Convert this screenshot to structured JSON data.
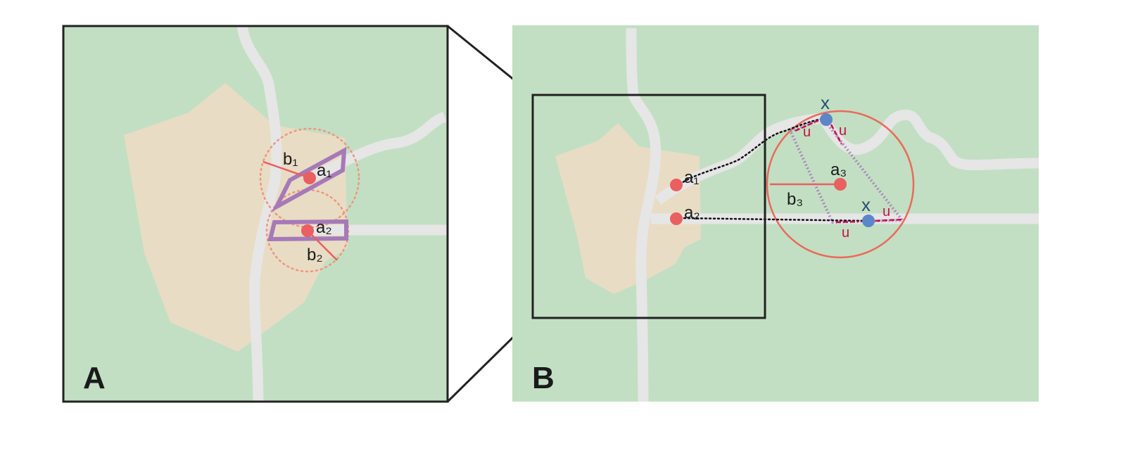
{
  "colors": {
    "land": "#c2dfc3",
    "settlement": "#e8dcc4",
    "road": "#e6e6e6",
    "point": "#ea5f5f",
    "candidate": "#5b87c9",
    "parallelogram": "#a679b8",
    "circle": "#ea6a5a",
    "uncertainty": "#c8104a",
    "frame": "#222222"
  },
  "panel_a": {
    "letter": "A",
    "labels": {
      "a1": "a₁",
      "a2": "a₂",
      "b1": "b₁",
      "b2": "b₂"
    }
  },
  "panel_b": {
    "letter": "B",
    "labels": {
      "a1": "a₁",
      "a2": "a₂",
      "a3": "a₃",
      "b3": "b₃",
      "x_top": "x",
      "x_bottom": "x",
      "u1": "u",
      "u2": "u",
      "u3": "u",
      "u4": "u"
    }
  }
}
